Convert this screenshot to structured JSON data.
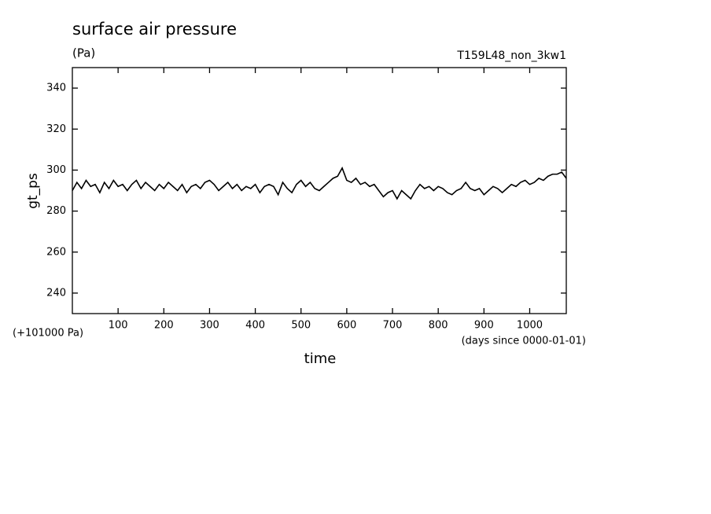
{
  "chart_data": {
    "type": "line",
    "title": "surface air pressure",
    "units": "(Pa)",
    "run_label": "T159L48_non_3kw1",
    "y_label": "gt_ps",
    "x_label": "time",
    "y_offset_note": "(+101000 Pa)",
    "x_units": "(days since 0000-01-01)",
    "color": "#000000",
    "xlim": [
      0,
      1080
    ],
    "xticks": [
      100,
      200,
      300,
      400,
      500,
      600,
      700,
      800,
      900,
      1000
    ],
    "ylim": [
      230,
      350
    ],
    "yticks": [
      240,
      260,
      280,
      300,
      320,
      340
    ],
    "x": [
      0,
      10,
      20,
      30,
      40,
      50,
      60,
      70,
      80,
      90,
      100,
      110,
      120,
      130,
      140,
      150,
      160,
      170,
      180,
      190,
      200,
      210,
      220,
      230,
      240,
      250,
      260,
      270,
      280,
      290,
      300,
      310,
      320,
      330,
      340,
      350,
      360,
      370,
      380,
      390,
      400,
      410,
      420,
      430,
      440,
      450,
      460,
      470,
      480,
      490,
      500,
      510,
      520,
      530,
      540,
      550,
      560,
      570,
      580,
      590,
      600,
      610,
      620,
      630,
      640,
      650,
      660,
      670,
      680,
      690,
      700,
      710,
      720,
      730,
      740,
      750,
      760,
      770,
      780,
      790,
      800,
      810,
      820,
      830,
      840,
      850,
      860,
      870,
      880,
      890,
      900,
      910,
      920,
      930,
      940,
      950,
      960,
      970,
      980,
      990,
      1000,
      1010,
      1020,
      1030,
      1040,
      1050,
      1060,
      1070,
      1080
    ],
    "values": [
      290,
      294,
      291,
      295,
      292,
      293,
      289,
      294,
      291,
      295,
      292,
      293,
      290,
      293,
      295,
      291,
      294,
      292,
      290,
      293,
      291,
      294,
      292,
      290,
      293,
      289,
      292,
      293,
      291,
      294,
      295,
      293,
      290,
      292,
      294,
      291,
      293,
      290,
      292,
      291,
      293,
      289,
      292,
      293,
      292,
      288,
      294,
      291,
      289,
      293,
      295,
      292,
      294,
      291,
      290,
      292,
      294,
      296,
      297,
      301,
      295,
      294,
      296,
      293,
      294,
      292,
      293,
      290,
      287,
      289,
      290,
      286,
      290,
      288,
      286,
      290,
      293,
      291,
      292,
      290,
      292,
      291,
      289,
      288,
      290,
      291,
      294,
      291,
      290,
      291,
      288,
      290,
      292,
      291,
      289,
      291,
      293,
      292,
      294,
      295,
      293,
      294,
      296,
      295,
      297,
      298,
      298,
      299,
      296
    ]
  }
}
